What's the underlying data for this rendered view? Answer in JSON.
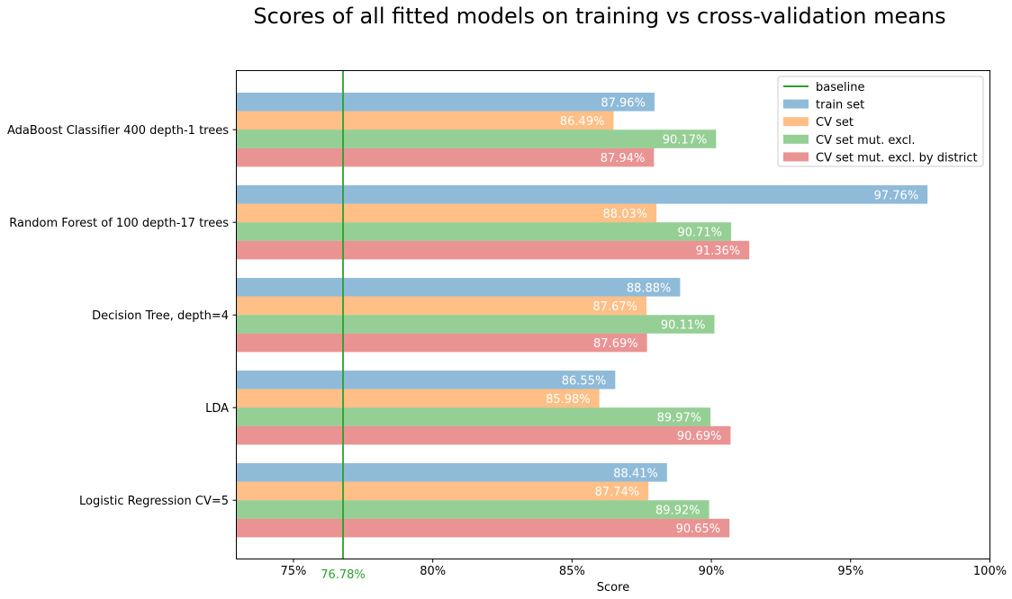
{
  "chart_data": {
    "type": "bar",
    "orientation": "horizontal",
    "title": "Scores of all fitted models on training vs cross-validation means",
    "xlabel": "Score",
    "ylabel": "",
    "xlim": [
      72.95,
      100
    ],
    "xticks": [
      75,
      80,
      85,
      90,
      95,
      100
    ],
    "xtick_labels": [
      "75%",
      "80%",
      "85%",
      "90%",
      "95%",
      "100%"
    ],
    "grid": false,
    "legend_position": "top-right",
    "categories": [
      "AdaBoost Classifier 400 depth-1 trees",
      "Random Forest of 100 depth-17 trees",
      "Decision Tree, depth=4",
      "LDA",
      "Logistic Regression CV=5"
    ],
    "series": [
      {
        "name": "train set",
        "color": "#1f77b4",
        "values": [
          87.96,
          97.76,
          88.88,
          86.55,
          88.41
        ],
        "labels": [
          "87.96%",
          "97.76%",
          "88.88%",
          "86.55%",
          "88.41%"
        ]
      },
      {
        "name": "CV set",
        "color": "#ff7f0e",
        "values": [
          86.49,
          88.03,
          87.67,
          85.98,
          87.74
        ],
        "labels": [
          "86.49%",
          "88.03%",
          "87.67%",
          "85.98%",
          "87.74%"
        ]
      },
      {
        "name": "CV set mut. excl.",
        "color": "#2ca02c",
        "values": [
          90.17,
          90.71,
          90.11,
          89.97,
          89.92
        ],
        "labels": [
          "90.17%",
          "90.71%",
          "90.11%",
          "89.97%",
          "89.92%"
        ]
      },
      {
        "name": "CV set mut. excl. by district",
        "color": "#d62728",
        "values": [
          87.94,
          91.36,
          87.69,
          90.69,
          90.65
        ],
        "labels": [
          "87.94%",
          "91.36%",
          "87.69%",
          "90.69%",
          "90.65%"
        ]
      }
    ],
    "baseline": {
      "name": "baseline",
      "value": 76.78,
      "label": "76.78%",
      "color": "#2ca02c"
    }
  }
}
